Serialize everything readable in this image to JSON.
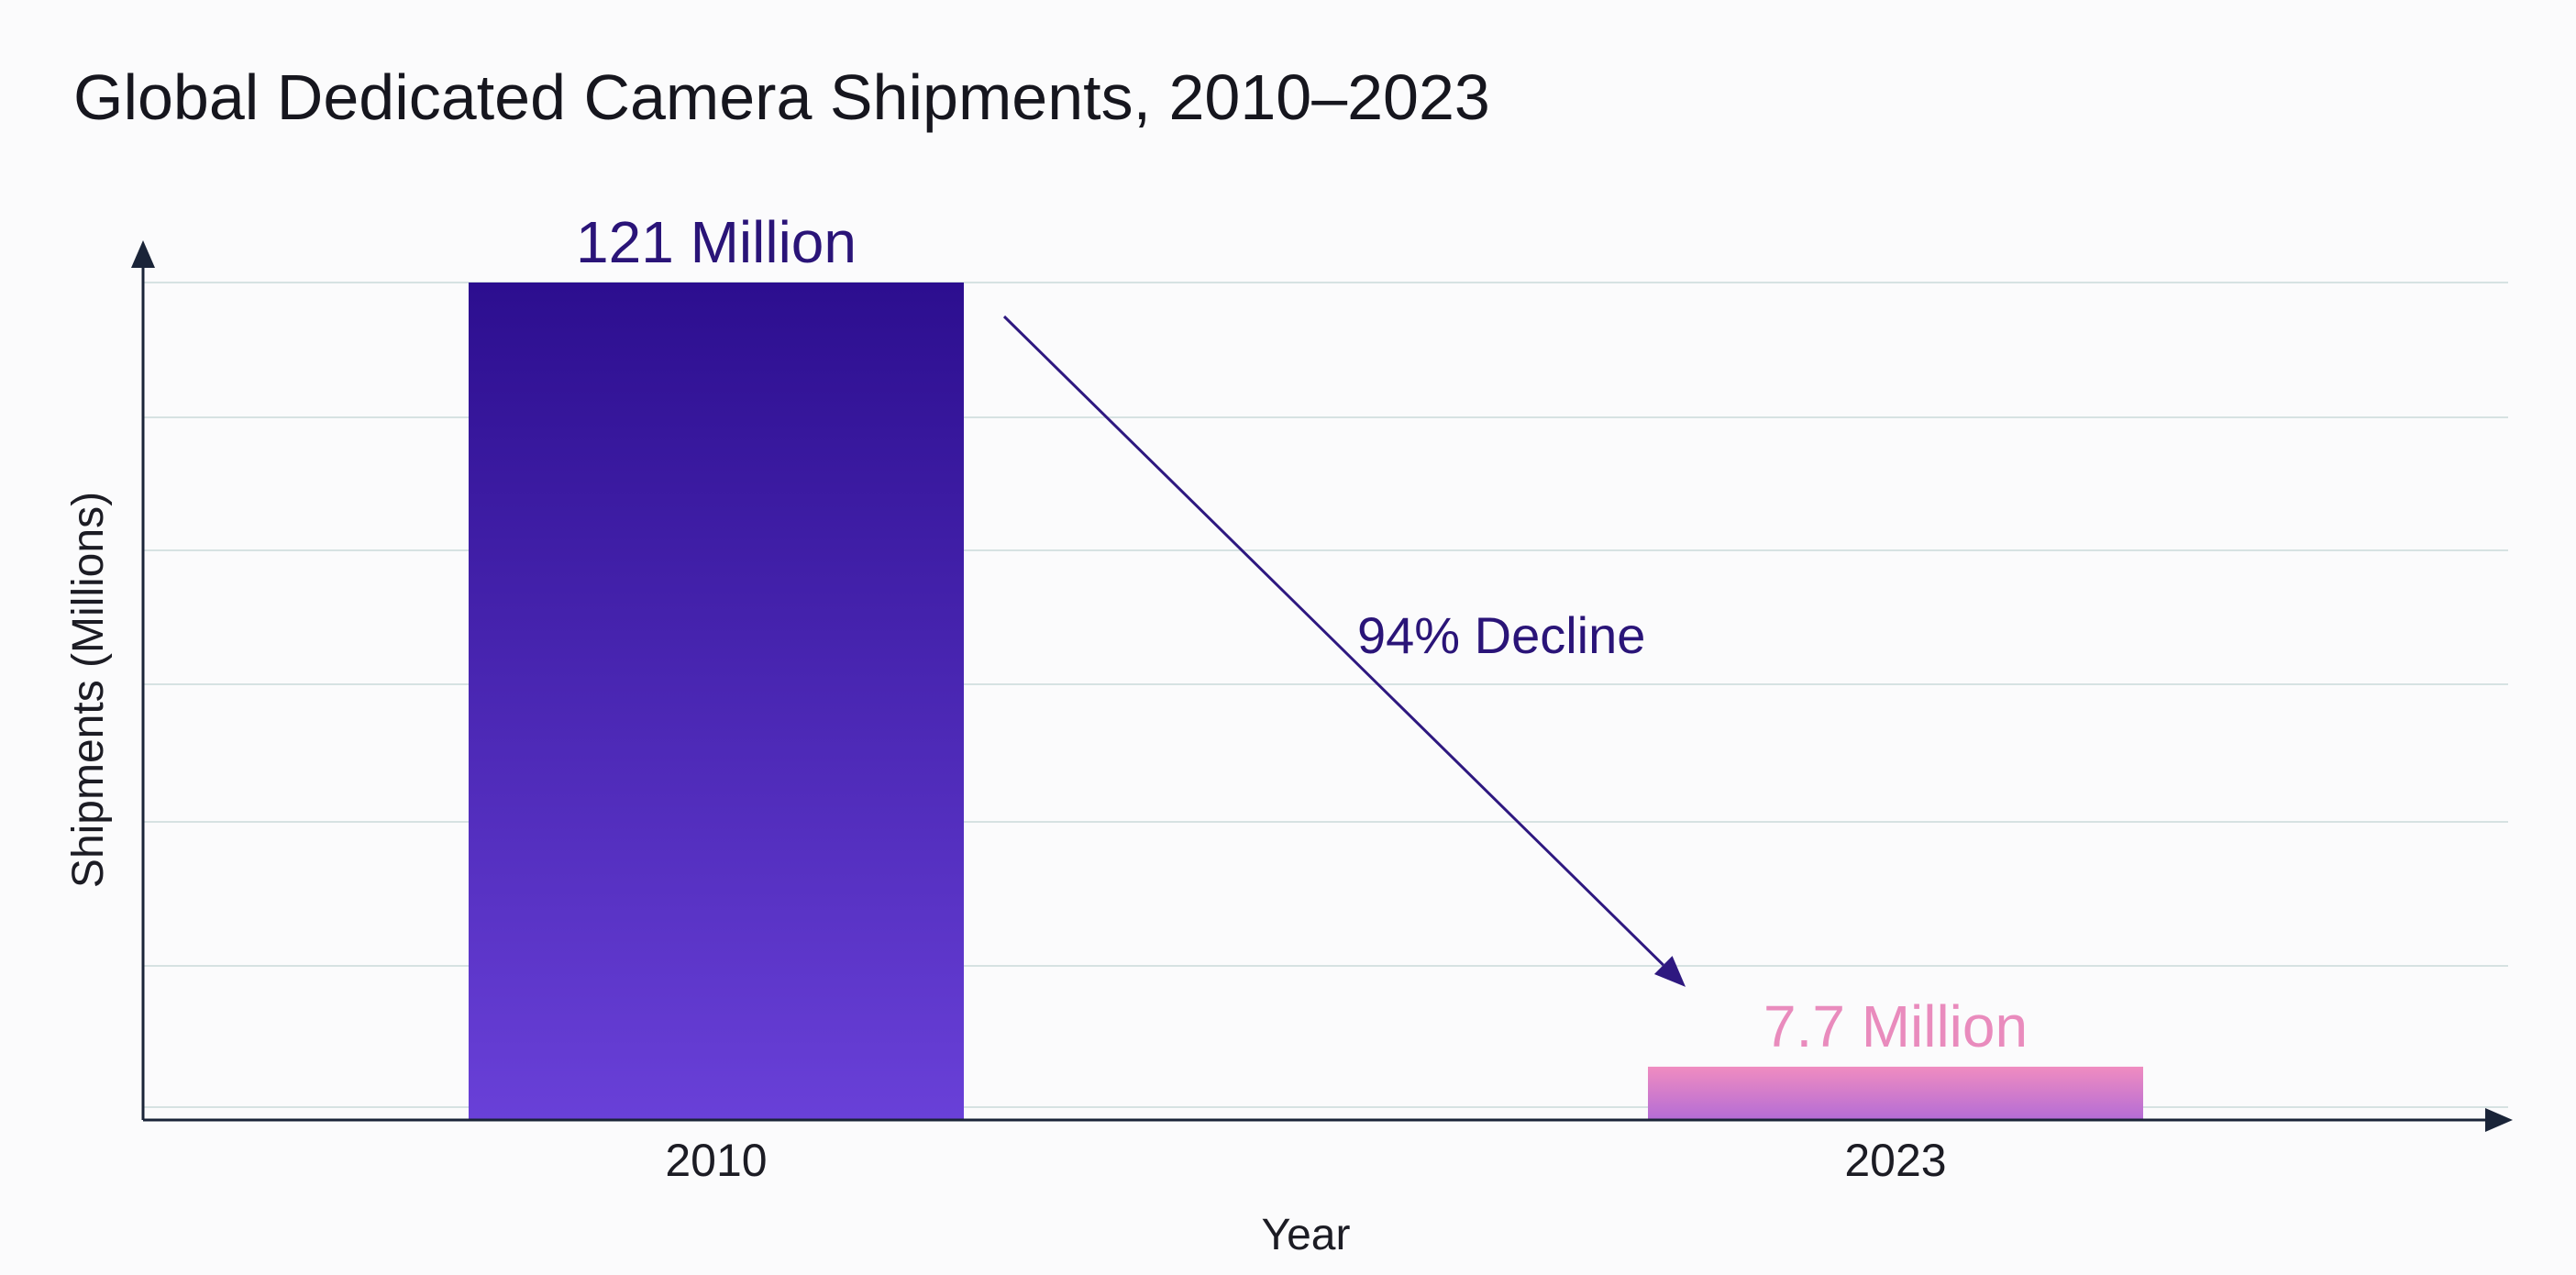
{
  "chart_data": {
    "type": "bar",
    "title": "Global Dedicated Camera Shipments, 2010–2023",
    "xlabel": "Year",
    "ylabel": "Shipments (Millions)",
    "categories": [
      "2010",
      "2023"
    ],
    "values": [
      121,
      7.7
    ],
    "data_labels": [
      "121 Million",
      "7.7 Million"
    ],
    "ylim": [
      0,
      121
    ],
    "grid": true,
    "annotation": {
      "text": "94% Decline",
      "from": "2010",
      "to": "2023"
    }
  },
  "colors": {
    "bar_2010_top": "#2c0e8f",
    "bar_2010_bottom": "#6940d8",
    "bar_2023_top": "#f08cc0",
    "bar_2023_bottom": "#b36cd6",
    "label_2010": "#2a1478",
    "label_2023": "#e98bbd",
    "arrow": "#2e1880",
    "axis": "#1a2438",
    "grid": "#d6e2e2"
  }
}
